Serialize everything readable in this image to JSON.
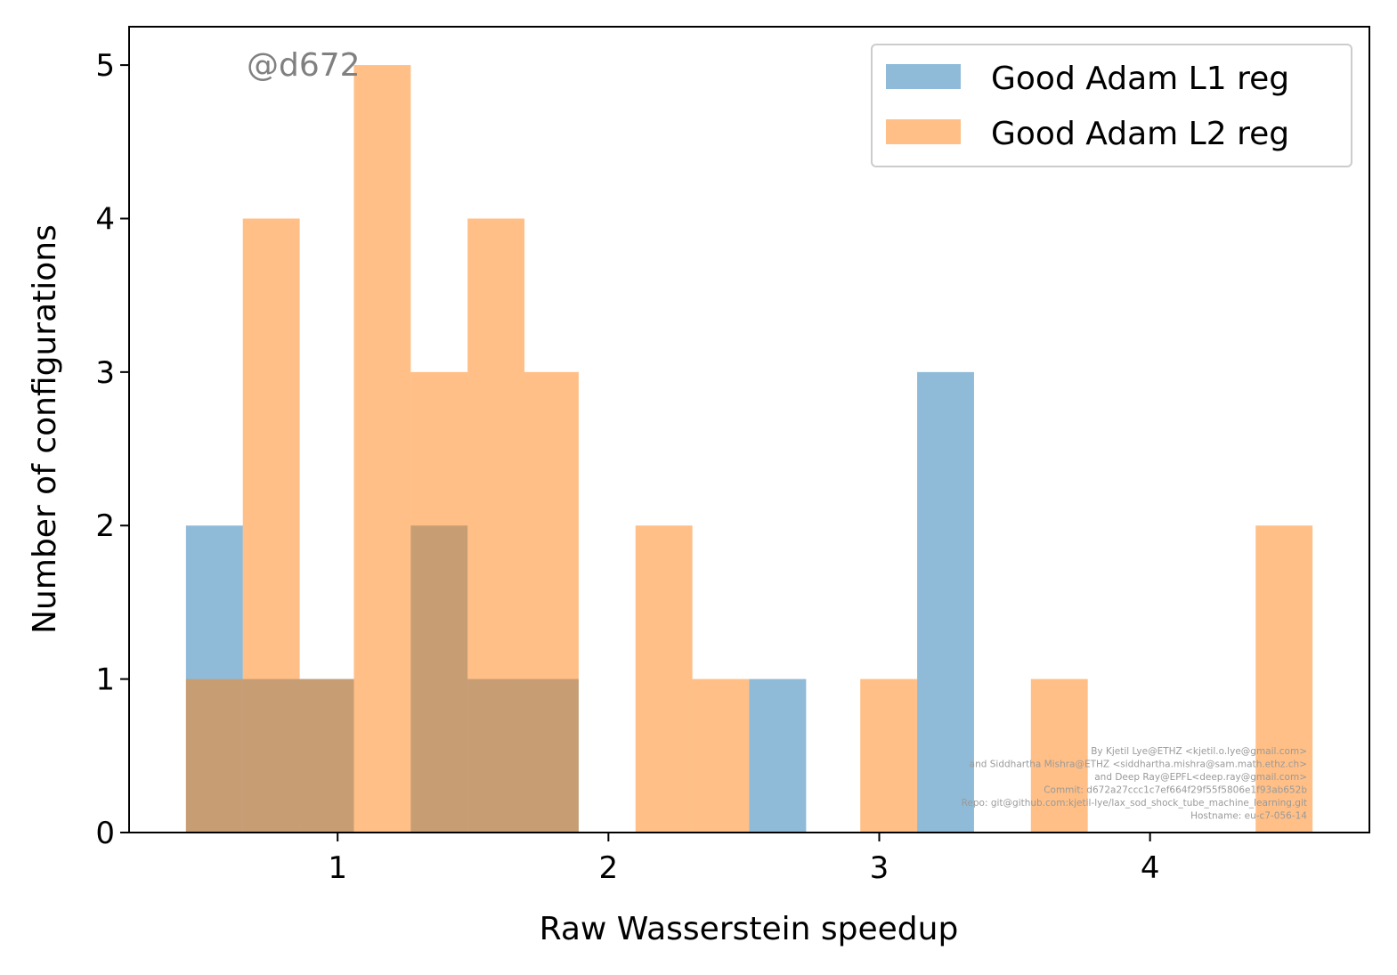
{
  "chart_data": {
    "type": "bar",
    "subtype": "overlapping-histogram",
    "xlabel": "Raw Wasserstein speedup",
    "ylabel": "Number of configurations",
    "xlim": [
      0.23,
      4.81
    ],
    "ylim": [
      0,
      5.25
    ],
    "xticks": [
      1,
      2,
      3,
      4
    ],
    "yticks": [
      0,
      1,
      2,
      3,
      4,
      5
    ],
    "grid": false,
    "legend_position": "top-right",
    "bar_alpha": 0.5,
    "series": [
      {
        "name": "Good Adam L1 reg",
        "color": "#1f77b4",
        "bins": [
          {
            "x0": 0.44,
            "x1": 0.65,
            "count": 2
          },
          {
            "x0": 0.65,
            "x1": 0.86,
            "count": 1
          },
          {
            "x0": 0.86,
            "x1": 1.06,
            "count": 1
          },
          {
            "x0": 1.27,
            "x1": 1.48,
            "count": 2
          },
          {
            "x0": 1.48,
            "x1": 1.69,
            "count": 1
          },
          {
            "x0": 1.69,
            "x1": 1.89,
            "count": 1
          },
          {
            "x0": 2.52,
            "x1": 2.73,
            "count": 1
          },
          {
            "x0": 3.14,
            "x1": 3.35,
            "count": 3
          }
        ]
      },
      {
        "name": "Good Adam L2 reg",
        "color": "#ff7f0e",
        "bins": [
          {
            "x0": 0.44,
            "x1": 0.65,
            "count": 1
          },
          {
            "x0": 0.65,
            "x1": 0.86,
            "count": 4
          },
          {
            "x0": 0.86,
            "x1": 1.06,
            "count": 1
          },
          {
            "x0": 1.06,
            "x1": 1.27,
            "count": 5
          },
          {
            "x0": 1.27,
            "x1": 1.48,
            "count": 3
          },
          {
            "x0": 1.48,
            "x1": 1.69,
            "count": 4
          },
          {
            "x0": 1.69,
            "x1": 1.89,
            "count": 3
          },
          {
            "x0": 2.1,
            "x1": 2.31,
            "count": 2
          },
          {
            "x0": 2.31,
            "x1": 2.52,
            "count": 1
          },
          {
            "x0": 2.93,
            "x1": 3.14,
            "count": 1
          },
          {
            "x0": 3.56,
            "x1": 3.77,
            "count": 1
          },
          {
            "x0": 4.39,
            "x1": 4.6,
            "count": 2
          }
        ]
      }
    ]
  },
  "watermark": "@d672",
  "credits": [
    "By Kjetil Lye@ETHZ <kjetil.o.lye@gmail.com>",
    "and Siddhartha Mishra@ETHZ <siddhartha.mishra@sam.math.ethz.ch>",
    "and Deep Ray@EPFL<deep.ray@gmail.com>",
    "Commit: d672a27ccc1c7ef664f29f55f5806e1f93ab652b",
    "Repo: git@github.com:kjetil-lye/lax_sod_shock_tube_machine_learning.git",
    "Hostname: eu-c7-056-14"
  ]
}
